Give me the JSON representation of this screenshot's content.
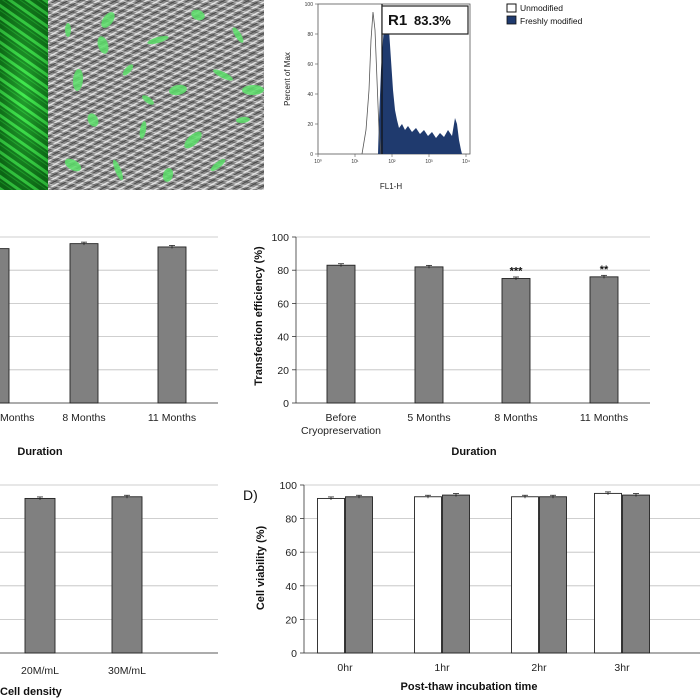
{
  "colors": {
    "gray_bar": "#808080",
    "white_bar": "#ffffff",
    "flow_fill": "#1f3a6e",
    "gfp_green": "#22c23a"
  },
  "panel_a": {
    "images": [
      "gfp-fluorescence-image",
      "phase-contrast-overlay-image"
    ]
  },
  "flow": {
    "ylabel": "Percent of Max",
    "xlabel": "FL1-H",
    "gate_label": "R1",
    "gate_value": "83.3%",
    "yticks": [
      "100",
      "80",
      "60",
      "40",
      "20",
      "0"
    ],
    "xticks": [
      "10⁰",
      "10¹",
      "10²",
      "10³",
      "10⁴"
    ],
    "legend": [
      {
        "label": "Unmodified",
        "color": "#ffffff"
      },
      {
        "label": "Freshly modified",
        "color": "#1f3a6e"
      }
    ]
  },
  "chart_data": [
    {
      "type": "bar",
      "panel": "viability-vs-duration",
      "categories": [
        "Months",
        "8 Months",
        "11 Months"
      ],
      "values": [
        93,
        96,
        94
      ],
      "xlabel": "Duration",
      "ylim": [
        0,
        100
      ]
    },
    {
      "type": "bar",
      "panel": "transfection-efficiency",
      "categories": [
        "Before Cryopreservation",
        "5 Months",
        "8 Months",
        "11 Months"
      ],
      "category_lines": [
        [
          "Before",
          "Cryopreservation"
        ],
        [
          "5 Months"
        ],
        [
          "8 Months"
        ],
        [
          "11 Months"
        ]
      ],
      "values": [
        83,
        82,
        75,
        76
      ],
      "annotations": [
        "",
        "",
        "***",
        "**"
      ],
      "ylabel": "Transfection efficiency (%)",
      "xlabel": "Duration",
      "yticks": [
        "0",
        "20",
        "40",
        "60",
        "80",
        "100"
      ],
      "ylim": [
        0,
        100
      ]
    },
    {
      "type": "bar",
      "panel": "viability-vs-cell-density",
      "categories": [
        "20M/mL",
        "30M/mL"
      ],
      "values": [
        92,
        93
      ],
      "xlabel": "Cell density",
      "ylim": [
        0,
        100
      ]
    },
    {
      "type": "bar",
      "panel": "D",
      "panel_label": "D)",
      "categories": [
        "0hr",
        "1hr",
        "2hr",
        "3hr"
      ],
      "series": [
        {
          "values": [
            92,
            93,
            93,
            95
          ],
          "color": "#ffffff"
        },
        {
          "values": [
            93,
            94,
            93,
            94
          ],
          "color": "#808080"
        }
      ],
      "ylabel": "Cell viability (%)",
      "xlabel": "Post-thaw incubation time",
      "yticks": [
        "0",
        "20",
        "40",
        "60",
        "80",
        "100"
      ],
      "ylim": [
        0,
        100
      ]
    }
  ]
}
